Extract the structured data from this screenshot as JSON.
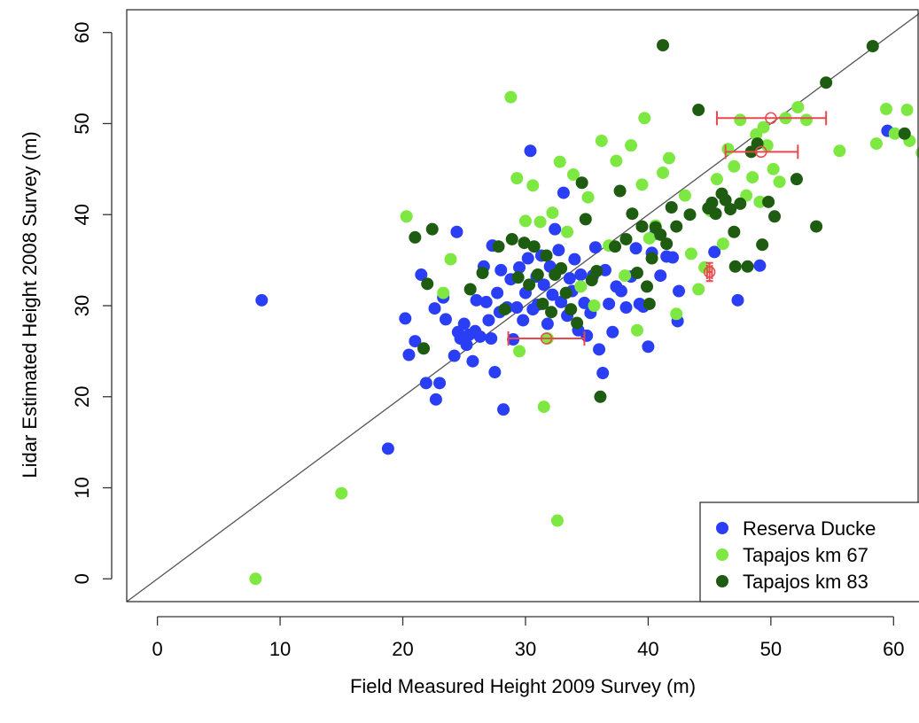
{
  "chart_data": {
    "type": "scatter",
    "title": "",
    "xlabel": "Field Measured Height 2009 Survey (m)",
    "ylabel": "Lidar Estimated Height 2008 Survey (m)",
    "xlim": [
      -2.5,
      62
    ],
    "ylim": [
      -2.5,
      62.5
    ],
    "xticks": [
      0,
      10,
      20,
      30,
      40,
      50,
      60
    ],
    "yticks": [
      0,
      10,
      20,
      30,
      40,
      50,
      60
    ],
    "grid": false,
    "legend_position": "bottom-right",
    "reference_line": {
      "type": "y=x",
      "color": "#555555"
    },
    "series": [
      {
        "name": "Reserva Ducke",
        "color": "#2a3ff5",
        "points": [
          [
            8.5,
            30.6
          ],
          [
            18.8,
            14.3
          ],
          [
            20.2,
            28.6
          ],
          [
            20.5,
            24.6
          ],
          [
            21,
            26.1
          ],
          [
            21.5,
            33.4
          ],
          [
            21.9,
            21.5
          ],
          [
            22.6,
            29.7
          ],
          [
            22.7,
            19.7
          ],
          [
            23,
            21.5
          ],
          [
            23.3,
            30.9
          ],
          [
            23.5,
            28.5
          ],
          [
            24.2,
            24.5
          ],
          [
            24.4,
            38.1
          ],
          [
            24.5,
            27.1
          ],
          [
            24.7,
            26.4
          ],
          [
            25,
            28
          ],
          [
            25.2,
            25.7
          ],
          [
            25.4,
            26.8
          ],
          [
            25.7,
            23.9
          ],
          [
            25.9,
            27.2
          ],
          [
            26,
            30.6
          ],
          [
            26.3,
            26.6
          ],
          [
            26.6,
            34.3
          ],
          [
            26.8,
            30.4
          ],
          [
            27,
            28.4
          ],
          [
            27.2,
            26.4
          ],
          [
            27.3,
            36.6
          ],
          [
            27.5,
            22.7
          ],
          [
            27.7,
            31.4
          ],
          [
            27.9,
            29.3
          ],
          [
            28,
            33.9
          ],
          [
            28.2,
            18.6
          ],
          [
            28.5,
            29.8
          ],
          [
            28.8,
            32.9
          ],
          [
            29,
            26.3
          ],
          [
            29.3,
            29.8
          ],
          [
            29.5,
            34.2
          ],
          [
            29.8,
            28.4
          ],
          [
            30,
            31.4
          ],
          [
            30.2,
            35.2
          ],
          [
            30.4,
            47
          ],
          [
            30.6,
            29.6
          ],
          [
            30.9,
            33.2
          ],
          [
            31,
            30.1
          ],
          [
            31.3,
            35.5
          ],
          [
            31.5,
            32.3
          ],
          [
            31.8,
            28
          ],
          [
            32,
            34.3
          ],
          [
            32.2,
            31.2
          ],
          [
            32.4,
            38.4
          ],
          [
            32.7,
            36.1
          ],
          [
            32.9,
            30.4
          ],
          [
            33.1,
            42.4
          ],
          [
            33.4,
            28.9
          ],
          [
            33.6,
            33
          ],
          [
            33.8,
            31.6
          ],
          [
            34,
            35.1
          ],
          [
            34.3,
            27.3
          ],
          [
            34.5,
            33.4
          ],
          [
            34.8,
            30.3
          ],
          [
            35,
            26.7
          ],
          [
            35.3,
            29.2
          ],
          [
            35.5,
            33.3
          ],
          [
            35.7,
            36.4
          ],
          [
            36,
            25.2
          ],
          [
            36.3,
            22.6
          ],
          [
            36.5,
            33.9
          ],
          [
            36.8,
            30.2
          ],
          [
            37.1,
            27.1
          ],
          [
            37.4,
            32.1
          ],
          [
            37.8,
            31.6
          ],
          [
            38.2,
            29.8
          ],
          [
            38.6,
            33.2
          ],
          [
            39,
            36.3
          ],
          [
            39.3,
            30.2
          ],
          [
            39.6,
            29.9
          ],
          [
            40,
            25.5
          ],
          [
            40.3,
            35.8
          ],
          [
            40.6,
            37.9
          ],
          [
            41,
            33.3
          ],
          [
            41.5,
            35.4
          ],
          [
            42,
            35.3
          ],
          [
            42.4,
            28.3
          ],
          [
            42.5,
            31.6
          ],
          [
            45.4,
            35.9
          ],
          [
            47.3,
            30.6
          ],
          [
            49.1,
            34.4
          ],
          [
            59.5,
            49.2
          ]
        ]
      },
      {
        "name": "Tapajos km 67",
        "color": "#7ee843",
        "points": [
          [
            8,
            0
          ],
          [
            15,
            9.4
          ],
          [
            20.3,
            39.8
          ],
          [
            23.3,
            31.4
          ],
          [
            23.9,
            35.1
          ],
          [
            28.8,
            52.9
          ],
          [
            29.3,
            44
          ],
          [
            29.5,
            25
          ],
          [
            30,
            39.3
          ],
          [
            30.6,
            43.2
          ],
          [
            31.2,
            39.2
          ],
          [
            31.5,
            18.9
          ],
          [
            31.8,
            26.4
          ],
          [
            32.2,
            40.2
          ],
          [
            32.6,
            6.4
          ],
          [
            32.8,
            45.8
          ],
          [
            33.4,
            38.1
          ],
          [
            33.9,
            44.4
          ],
          [
            34.5,
            32.1
          ],
          [
            35.1,
            41.9
          ],
          [
            35.6,
            30
          ],
          [
            36.2,
            48.1
          ],
          [
            36.8,
            36.6
          ],
          [
            37.4,
            45.9
          ],
          [
            38.1,
            33.3
          ],
          [
            38.6,
            47.6
          ],
          [
            39.1,
            27.3
          ],
          [
            39.5,
            43.3
          ],
          [
            39.7,
            50.6
          ],
          [
            40.1,
            37.4
          ],
          [
            40.6,
            38.8
          ],
          [
            41.2,
            44.6
          ],
          [
            41.7,
            46.2
          ],
          [
            42.3,
            29.1
          ],
          [
            43,
            42.1
          ],
          [
            43.5,
            35.7
          ],
          [
            44.1,
            31.8
          ],
          [
            44.6,
            34.2
          ],
          [
            45.1,
            40.4
          ],
          [
            45.6,
            43.9
          ],
          [
            46.1,
            36.8
          ],
          [
            46.5,
            47.2
          ],
          [
            47,
            45.3
          ],
          [
            47.5,
            50.4
          ],
          [
            48,
            42.1
          ],
          [
            48.5,
            44.1
          ],
          [
            48.8,
            48.8
          ],
          [
            49.1,
            41.4
          ],
          [
            49.4,
            49.6
          ],
          [
            49.7,
            47.6
          ],
          [
            50.2,
            45
          ],
          [
            50.7,
            43.6
          ],
          [
            51.2,
            50.6
          ],
          [
            52.2,
            51.8
          ],
          [
            52.9,
            50.4
          ],
          [
            55.6,
            47
          ],
          [
            58.6,
            47.8
          ],
          [
            59.4,
            51.6
          ],
          [
            60.1,
            48.9
          ],
          [
            61.1,
            51.5
          ],
          [
            61.3,
            48.1
          ],
          [
            62.3,
            46.8
          ]
        ]
      },
      {
        "name": "Tapajos km 83",
        "color": "#1e5c12",
        "points": [
          [
            21,
            37.5
          ],
          [
            21.7,
            25.3
          ],
          [
            22,
            32.4
          ],
          [
            22.4,
            38.4
          ],
          [
            25.5,
            31.8
          ],
          [
            26.5,
            33.6
          ],
          [
            27.8,
            36.5
          ],
          [
            28.3,
            29.6
          ],
          [
            28.9,
            37.3
          ],
          [
            29.4,
            33.1
          ],
          [
            29.9,
            36.9
          ],
          [
            30.3,
            32.3
          ],
          [
            30.7,
            36.5
          ],
          [
            31,
            33.4
          ],
          [
            31.4,
            30.2
          ],
          [
            31.7,
            35.5
          ],
          [
            32.1,
            29.3
          ],
          [
            32.4,
            33.4
          ],
          [
            32.9,
            34.1
          ],
          [
            33.3,
            31.4
          ],
          [
            33.7,
            29.6
          ],
          [
            34.2,
            28.1
          ],
          [
            34.6,
            43.5
          ],
          [
            34.9,
            39.5
          ],
          [
            35.4,
            32.8
          ],
          [
            35.8,
            33.8
          ],
          [
            36.1,
            20
          ],
          [
            37.3,
            36.5
          ],
          [
            37.7,
            42.6
          ],
          [
            38.2,
            37.3
          ],
          [
            38.7,
            40.1
          ],
          [
            39.1,
            33.6
          ],
          [
            39.5,
            38.7
          ],
          [
            39.9,
            32.1
          ],
          [
            40.1,
            30.2
          ],
          [
            40.3,
            35.2
          ],
          [
            40.6,
            38.6
          ],
          [
            41,
            37.8
          ],
          [
            41.2,
            58.6
          ],
          [
            41.5,
            36.8
          ],
          [
            41.9,
            40.8
          ],
          [
            42.3,
            38.7
          ],
          [
            43.4,
            40
          ],
          [
            44.1,
            51.5
          ],
          [
            44.9,
            40.7
          ],
          [
            45.2,
            41.3
          ],
          [
            45.5,
            40.1
          ],
          [
            46,
            42.3
          ],
          [
            46.3,
            41.6
          ],
          [
            46.7,
            40.6
          ],
          [
            47,
            38.1
          ],
          [
            47.1,
            34.3
          ],
          [
            47.5,
            41.2
          ],
          [
            48.1,
            34.3
          ],
          [
            48.4,
            46.9
          ],
          [
            48.9,
            47.8
          ],
          [
            49.3,
            36.7
          ],
          [
            49.8,
            41.4
          ],
          [
            50.3,
            39.8
          ],
          [
            52.1,
            43.9
          ],
          [
            53.7,
            38.7
          ],
          [
            54.5,
            54.5
          ],
          [
            58.3,
            58.5
          ],
          [
            60.9,
            48.9
          ]
        ]
      }
    ],
    "error_bars": [
      {
        "center": [
          31.7,
          26.4
        ],
        "x_range": [
          28.6,
          34.8
        ]
      },
      {
        "center": [
          45,
          33.7
        ],
        "x_range": [
          44.8,
          45.2
        ],
        "y_range": [
          32.7,
          34.7
        ]
      },
      {
        "center": [
          49.2,
          46.9
        ],
        "x_range": [
          46.3,
          52.2
        ]
      },
      {
        "center": [
          50,
          50.6
        ],
        "x_range": [
          45.6,
          54.5
        ]
      }
    ]
  }
}
